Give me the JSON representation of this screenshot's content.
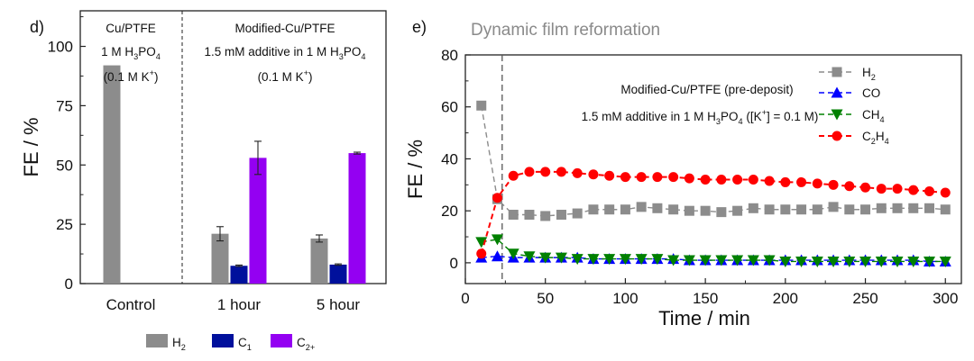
{
  "chart_data": [
    {
      "panel_label": "d)",
      "type": "bar",
      "ylabel": "FE / %",
      "ylim": [
        0,
        115
      ],
      "yticks": [
        0,
        25,
        50,
        75,
        100
      ],
      "categories": [
        "Control",
        "1 hour",
        "5 hour"
      ],
      "series": [
        {
          "name": "H2",
          "legend_main": "H",
          "legend_sub": "2",
          "color": "#8c8c8c",
          "values": [
            92,
            21,
            19
          ],
          "errors": [
            0,
            3,
            1.5
          ]
        },
        {
          "name": "C1",
          "legend_main": "C",
          "legend_sub": "1",
          "color": "#00109c",
          "values": [
            null,
            7.5,
            8
          ],
          "errors": [
            0,
            0.3,
            0.3
          ]
        },
        {
          "name": "C2+",
          "legend_main": "C",
          "legend_sub": "2+",
          "color": "#9400f2",
          "values": [
            null,
            53,
            55
          ],
          "errors": [
            0,
            7,
            0.4
          ]
        }
      ],
      "annotations": {
        "left_title": "Cu/PTFE",
        "left_line2": {
          "a": "1 M H",
          "s1": "3",
          "b": "PO",
          "s2": "4"
        },
        "left_line3": {
          "a": "(0.1 M K",
          "sup": "+",
          "b": ")"
        },
        "right_title": "Modified-Cu/PTFE",
        "right_line2": {
          "a": "1.5 mM additive in 1 M H",
          "s1": "3",
          "b": "PO",
          "s2": "4"
        },
        "right_line3": {
          "a": "(0.1 M K",
          "sup": "+",
          "b": ")"
        }
      }
    },
    {
      "panel_label": "e)",
      "type": "line",
      "subtitle": "Dynamic film reformation",
      "xlabel": "Time / min",
      "ylabel": "FE / %",
      "xlim": [
        0,
        310
      ],
      "ylim": [
        -8,
        80
      ],
      "xticks": [
        0,
        50,
        100,
        150,
        200,
        250,
        300
      ],
      "yticks": [
        0,
        20,
        40,
        60,
        80
      ],
      "vline_x": 23,
      "annotation_line1": "Modified-Cu/PTFE (pre-deposit)",
      "annotation_line2": {
        "a": "1.5 mM additive in 1 M H",
        "s1": "3",
        "b": "PO",
        "s2": "4",
        "c": " ([K",
        "sup": "+",
        "d": "] = 0.1 M)"
      },
      "x": [
        10,
        20,
        30,
        40,
        50,
        60,
        70,
        80,
        90,
        100,
        110,
        120,
        130,
        140,
        150,
        160,
        170,
        180,
        190,
        200,
        210,
        220,
        230,
        240,
        250,
        260,
        270,
        280,
        290,
        300
      ],
      "series": [
        {
          "name": "H2",
          "label_main": "H",
          "label_sub": "2",
          "color": "#8c8c8c",
          "marker": "square",
          "values": [
            60.5,
            24.5,
            18.5,
            18.5,
            18,
            18.5,
            19,
            20.5,
            20.5,
            20.5,
            21.5,
            21,
            20.5,
            20,
            20,
            19.5,
            20,
            21,
            20.5,
            20.5,
            20.5,
            20.5,
            21.5,
            20.5,
            20.5,
            21,
            21,
            21,
            21,
            20.5
          ]
        },
        {
          "name": "CO",
          "label_main": "CO",
          "label_sub": "",
          "color": "#0000ff",
          "marker": "triangle-up",
          "values": [
            2,
            2.5,
            2,
            2,
            2,
            2,
            2,
            1.5,
            1.5,
            1.5,
            1.5,
            1.5,
            1.5,
            1,
            1,
            1,
            1,
            1,
            1,
            1,
            1,
            1,
            1,
            1,
            1,
            1,
            1,
            1,
            0.5,
            0.5
          ]
        },
        {
          "name": "CH4",
          "label_main": "CH",
          "label_sub": "4",
          "color": "#008000",
          "marker": "triangle-down",
          "values": [
            8,
            9,
            3.5,
            2.5,
            2,
            2,
            1.5,
            1.5,
            1.5,
            1.5,
            1.5,
            1.5,
            1,
            1,
            1,
            1,
            1,
            1,
            1,
            0.5,
            0.5,
            0.5,
            0.5,
            0.5,
            0.5,
            0.5,
            0.5,
            0.5,
            0.5,
            0.5
          ]
        },
        {
          "name": "C2H4",
          "label_main": "C",
          "label_sub": "2",
          "label_main2": "H",
          "label_sub2": "4",
          "color": "#ff0000",
          "marker": "circle",
          "values": [
            3.5,
            25,
            33.5,
            35,
            35,
            35,
            34.5,
            34,
            33.5,
            33,
            33,
            33,
            33,
            32.5,
            32,
            32,
            32,
            32,
            31.5,
            31,
            31,
            30.5,
            30,
            29.5,
            29,
            28.5,
            28.5,
            28,
            27.5,
            27
          ]
        }
      ]
    }
  ]
}
